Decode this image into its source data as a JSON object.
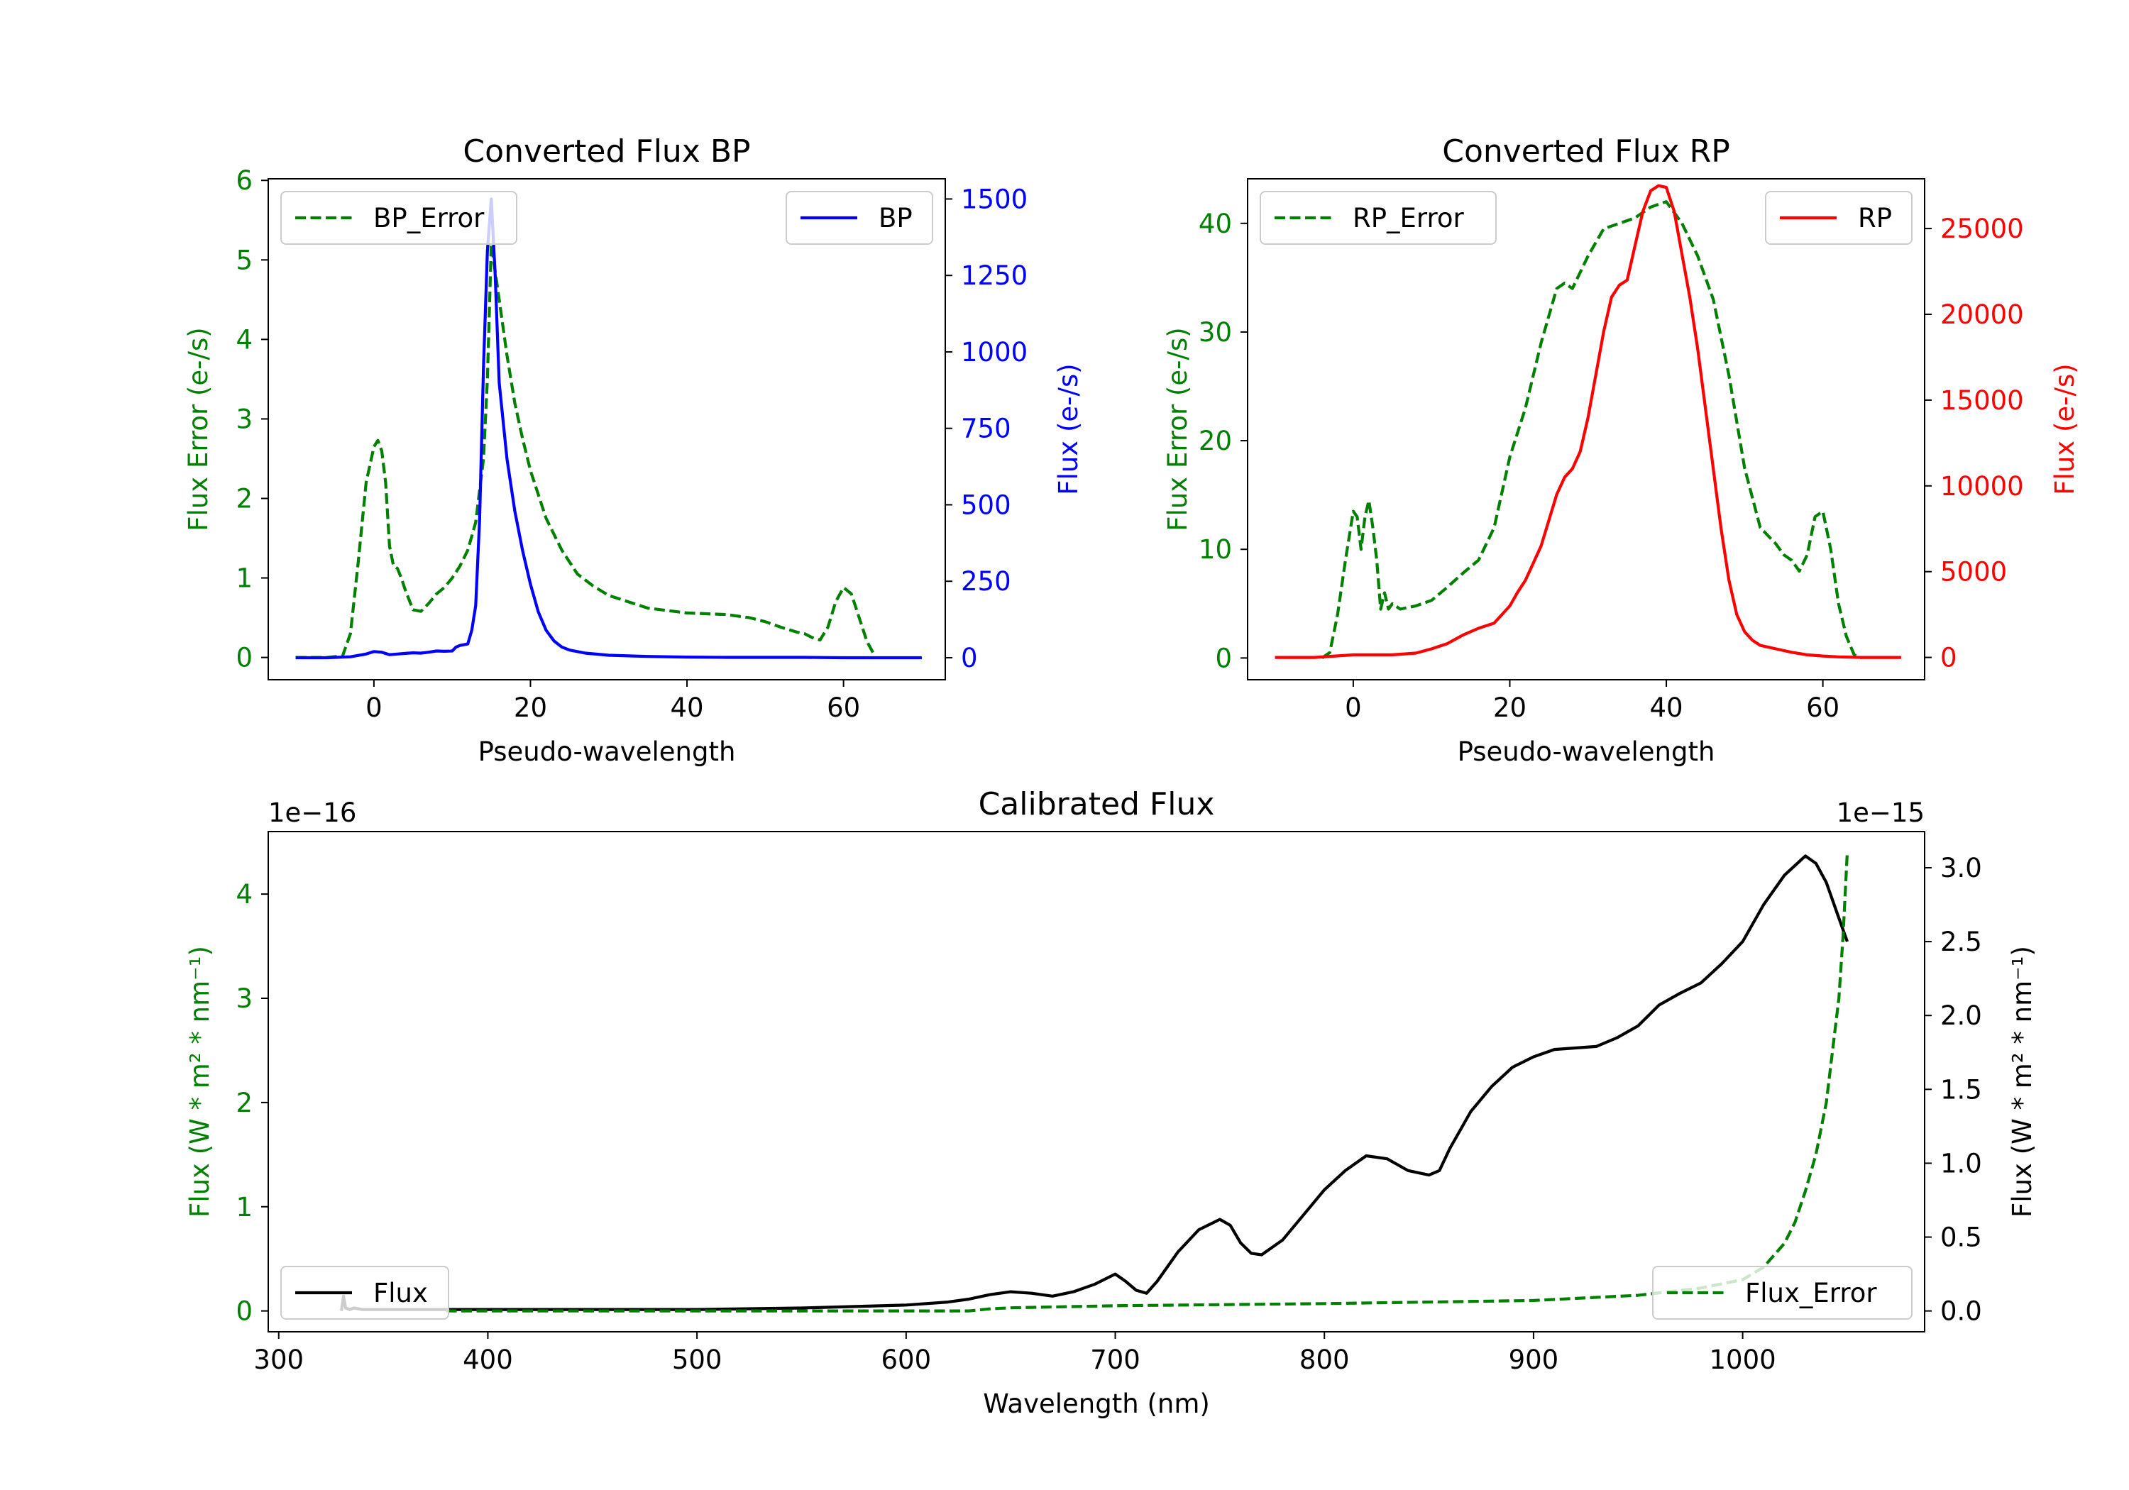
{
  "chart_data": [
    {
      "type": "line",
      "title": "Converted Flux BP",
      "xlabel": "Pseudo-wavelength",
      "ylabel_left": "Flux Error (e-/s)",
      "ylabel_right": "Flux (e-/s)",
      "xlim": [
        -13.5,
        73
      ],
      "ylim_left": [
        -0.28,
        6.02
      ],
      "ylim_right": [
        -72,
        1566
      ],
      "xticks": [
        0,
        20,
        40,
        60
      ],
      "yticks_left": [
        0,
        1,
        2,
        3,
        4,
        5,
        6
      ],
      "yticks_right": [
        0,
        250,
        500,
        750,
        1000,
        1250,
        1500
      ],
      "colors": {
        "left": "#008000",
        "right": "#0000ff"
      },
      "legend_left": {
        "label": "BP_Error",
        "placement": "upper left"
      },
      "legend_right": {
        "label": "BP",
        "placement": "upper right"
      },
      "series": [
        {
          "name": "BP_Error",
          "axis": "left",
          "style": "dashed",
          "color": "#008000",
          "x": [
            -10,
            -6,
            -4,
            -3,
            -2,
            -1,
            0,
            0.5,
            1,
            1.5,
            2,
            2.5,
            3,
            3.5,
            4,
            5,
            6,
            7,
            8,
            9,
            10,
            11,
            12,
            13,
            14,
            14.5,
            15,
            16,
            17,
            18,
            19,
            20,
            22,
            24,
            26,
            28,
            30,
            35,
            40,
            45,
            48,
            50,
            52,
            54,
            55,
            56,
            57,
            58,
            59,
            60,
            61,
            62,
            63,
            64
          ],
          "values": [
            0,
            0,
            0.02,
            0.3,
            1.2,
            2.2,
            2.65,
            2.73,
            2.6,
            2.2,
            1.4,
            1.15,
            1.12,
            1.0,
            0.85,
            0.6,
            0.58,
            0.68,
            0.8,
            0.88,
            1.0,
            1.15,
            1.35,
            1.7,
            2.5,
            3.5,
            5.2,
            4.5,
            3.8,
            3.2,
            2.75,
            2.35,
            1.75,
            1.35,
            1.05,
            0.9,
            0.78,
            0.62,
            0.56,
            0.54,
            0.5,
            0.45,
            0.38,
            0.32,
            0.3,
            0.25,
            0.22,
            0.38,
            0.7,
            0.88,
            0.8,
            0.5,
            0.2,
            0.02
          ]
        },
        {
          "name": "BP",
          "axis": "right",
          "style": "solid",
          "color": "#0000ff",
          "x": [
            -10,
            -6,
            -3,
            -1,
            0,
            1,
            2,
            3,
            4,
            5,
            6,
            7,
            8,
            9,
            10,
            10.5,
            11,
            12,
            12.5,
            13,
            13.5,
            14,
            14.5,
            15,
            15.5,
            16,
            17,
            18,
            19,
            20,
            21,
            22,
            23,
            24,
            25,
            27,
            30,
            35,
            40,
            45,
            50,
            55,
            60,
            65,
            70
          ],
          "values": [
            0,
            0,
            3,
            12,
            20,
            18,
            10,
            12,
            14,
            16,
            15,
            18,
            22,
            21,
            22,
            35,
            40,
            45,
            90,
            170,
            450,
            950,
            1330,
            1500,
            1250,
            900,
            650,
            480,
            350,
            240,
            150,
            90,
            55,
            35,
            25,
            15,
            8,
            4,
            2,
            1,
            1,
            1,
            0,
            0,
            0
          ]
        }
      ]
    },
    {
      "type": "line",
      "title": "Converted Flux RP",
      "xlabel": "Pseudo-wavelength",
      "ylabel_left": "Flux Error (e-/s)",
      "ylabel_right": "Flux (e-/s)",
      "xlim": [
        -13.5,
        73
      ],
      "ylim_left": [
        -2,
        44.1
      ],
      "ylim_right": [
        -1300,
        27900
      ],
      "xticks": [
        0,
        20,
        40,
        60
      ],
      "yticks_left": [
        0,
        10,
        20,
        30,
        40
      ],
      "yticks_right": [
        0,
        5000,
        10000,
        15000,
        20000,
        25000
      ],
      "colors": {
        "left": "#008000",
        "right": "#ff0000"
      },
      "legend_left": {
        "label": "RP_Error",
        "placement": "upper left"
      },
      "legend_right": {
        "label": "RP",
        "placement": "upper right"
      },
      "series": [
        {
          "name": "RP_Error",
          "axis": "left",
          "style": "dashed",
          "color": "#008000",
          "x": [
            -4,
            -3,
            -2,
            -1,
            0,
            0.5,
            1,
            1.5,
            2,
            2.5,
            3,
            3.5,
            4,
            4.5,
            5,
            6,
            8,
            10,
            12,
            14,
            16,
            18,
            20,
            22,
            24,
            26,
            27,
            28,
            30,
            32,
            34,
            36,
            38,
            40,
            42,
            44,
            46,
            48,
            50,
            52,
            54,
            55,
            56,
            57,
            58,
            59,
            60,
            61,
            62,
            63,
            64,
            65
          ],
          "values": [
            0,
            0.5,
            4,
            9,
            13.5,
            13,
            10,
            13,
            14.5,
            12,
            9,
            4.5,
            6,
            4.5,
            5,
            4.5,
            4.8,
            5.3,
            6.5,
            7.8,
            9,
            12,
            18.5,
            23,
            29,
            34,
            34.5,
            34,
            37,
            39.5,
            40,
            40.5,
            41.5,
            42,
            40,
            37,
            33,
            26,
            17.5,
            12,
            10.5,
            9.5,
            9,
            8,
            9.5,
            13,
            13.5,
            10,
            5,
            2,
            0.3,
            0
          ]
        },
        {
          "name": "RP",
          "axis": "right",
          "style": "solid",
          "color": "#ff0000",
          "x": [
            -10,
            -5,
            0,
            5,
            8,
            10,
            12,
            14,
            16,
            18,
            20,
            21,
            22,
            23,
            24,
            25,
            26,
            27,
            28,
            29,
            30,
            31,
            32,
            33,
            34,
            35,
            36,
            37,
            38,
            39,
            40,
            41,
            42,
            43,
            44,
            45,
            46,
            47,
            48,
            49,
            50,
            51,
            52,
            54,
            56,
            58,
            60,
            62,
            65,
            70
          ],
          "values": [
            0,
            0,
            150,
            150,
            250,
            500,
            800,
            1300,
            1700,
            2000,
            3000,
            3800,
            4500,
            5500,
            6500,
            8000,
            9500,
            10500,
            11000,
            12000,
            14000,
            16500,
            19000,
            21000,
            21700,
            22000,
            24000,
            26000,
            27200,
            27500,
            27400,
            26000,
            23500,
            21000,
            18000,
            14500,
            11000,
            7500,
            4500,
            2500,
            1500,
            1000,
            700,
            500,
            300,
            150,
            80,
            30,
            0,
            0
          ]
        }
      ]
    },
    {
      "type": "line",
      "title": "Calibrated Flux",
      "xlabel": "Wavelength (nm)",
      "ylabel_left": "Flux (W * m² * nm⁻¹)",
      "ylabel_right": "Flux (W * m² * nm⁻¹)",
      "offset_left": "1e−16",
      "offset_right": "1e−15",
      "xlim": [
        295,
        1087
      ],
      "ylim_left": [
        -0.2,
        4.6
      ],
      "ylim_right": [
        -0.141,
        3.245
      ],
      "xticks": [
        300,
        400,
        500,
        600,
        700,
        800,
        900,
        1000
      ],
      "yticks_left": [
        0,
        1,
        2,
        3,
        4
      ],
      "yticks_right": [
        0.0,
        0.5,
        1.0,
        1.5,
        2.0,
        2.5,
        3.0
      ],
      "ytick_labels_right": [
        "0.0",
        "0.5",
        "1.0",
        "1.5",
        "2.0",
        "2.5",
        "3.0"
      ],
      "colors": {
        "left": "#008000",
        "right": "#000000"
      },
      "legend_left": {
        "label": "Flux",
        "placement": "lower left"
      },
      "legend_right": {
        "label": "Flux_Error",
        "placement": "lower right"
      },
      "series": [
        {
          "name": "Flux",
          "axis": "right",
          "style": "solid",
          "color": "#000000",
          "x": [
            330,
            331,
            332,
            334,
            336,
            340,
            350,
            360,
            380,
            400,
            450,
            500,
            550,
            600,
            620,
            630,
            640,
            650,
            660,
            670,
            680,
            690,
            700,
            705,
            710,
            715,
            720,
            730,
            740,
            750,
            755,
            760,
            765,
            770,
            780,
            790,
            800,
            810,
            820,
            830,
            840,
            850,
            855,
            860,
            870,
            880,
            890,
            900,
            910,
            920,
            930,
            940,
            950,
            960,
            970,
            980,
            990,
            1000,
            1010,
            1020,
            1030,
            1035,
            1040,
            1045,
            1050
          ],
          "values": [
            0.0,
            0.1,
            0.02,
            0.01,
            0.02,
            0.01,
            0.01,
            0.01,
            0.01,
            0.01,
            0.01,
            0.01,
            0.02,
            0.04,
            0.06,
            0.08,
            0.11,
            0.13,
            0.12,
            0.1,
            0.13,
            0.18,
            0.25,
            0.2,
            0.14,
            0.12,
            0.2,
            0.4,
            0.55,
            0.62,
            0.58,
            0.46,
            0.39,
            0.38,
            0.48,
            0.65,
            0.82,
            0.95,
            1.05,
            1.03,
            0.95,
            0.92,
            0.95,
            1.1,
            1.35,
            1.52,
            1.65,
            1.72,
            1.77,
            1.78,
            1.79,
            1.85,
            1.93,
            2.07,
            2.15,
            2.22,
            2.35,
            2.5,
            2.75,
            2.95,
            3.08,
            3.03,
            2.9,
            2.7,
            2.5
          ]
        },
        {
          "name": "Flux_Error",
          "axis": "left",
          "style": "dashed",
          "color": "#008000",
          "x": [
            380,
            400,
            500,
            600,
            630,
            640,
            650,
            700,
            800,
            900,
            950,
            980,
            1000,
            1010,
            1020,
            1025,
            1030,
            1035,
            1040,
            1043,
            1046,
            1048,
            1050
          ],
          "values": [
            0,
            0,
            0,
            0,
            0,
            0.02,
            0.03,
            0.05,
            0.07,
            0.1,
            0.15,
            0.22,
            0.3,
            0.42,
            0.65,
            0.85,
            1.15,
            1.5,
            2.0,
            2.5,
            3.0,
            3.6,
            4.4
          ]
        }
      ]
    }
  ]
}
